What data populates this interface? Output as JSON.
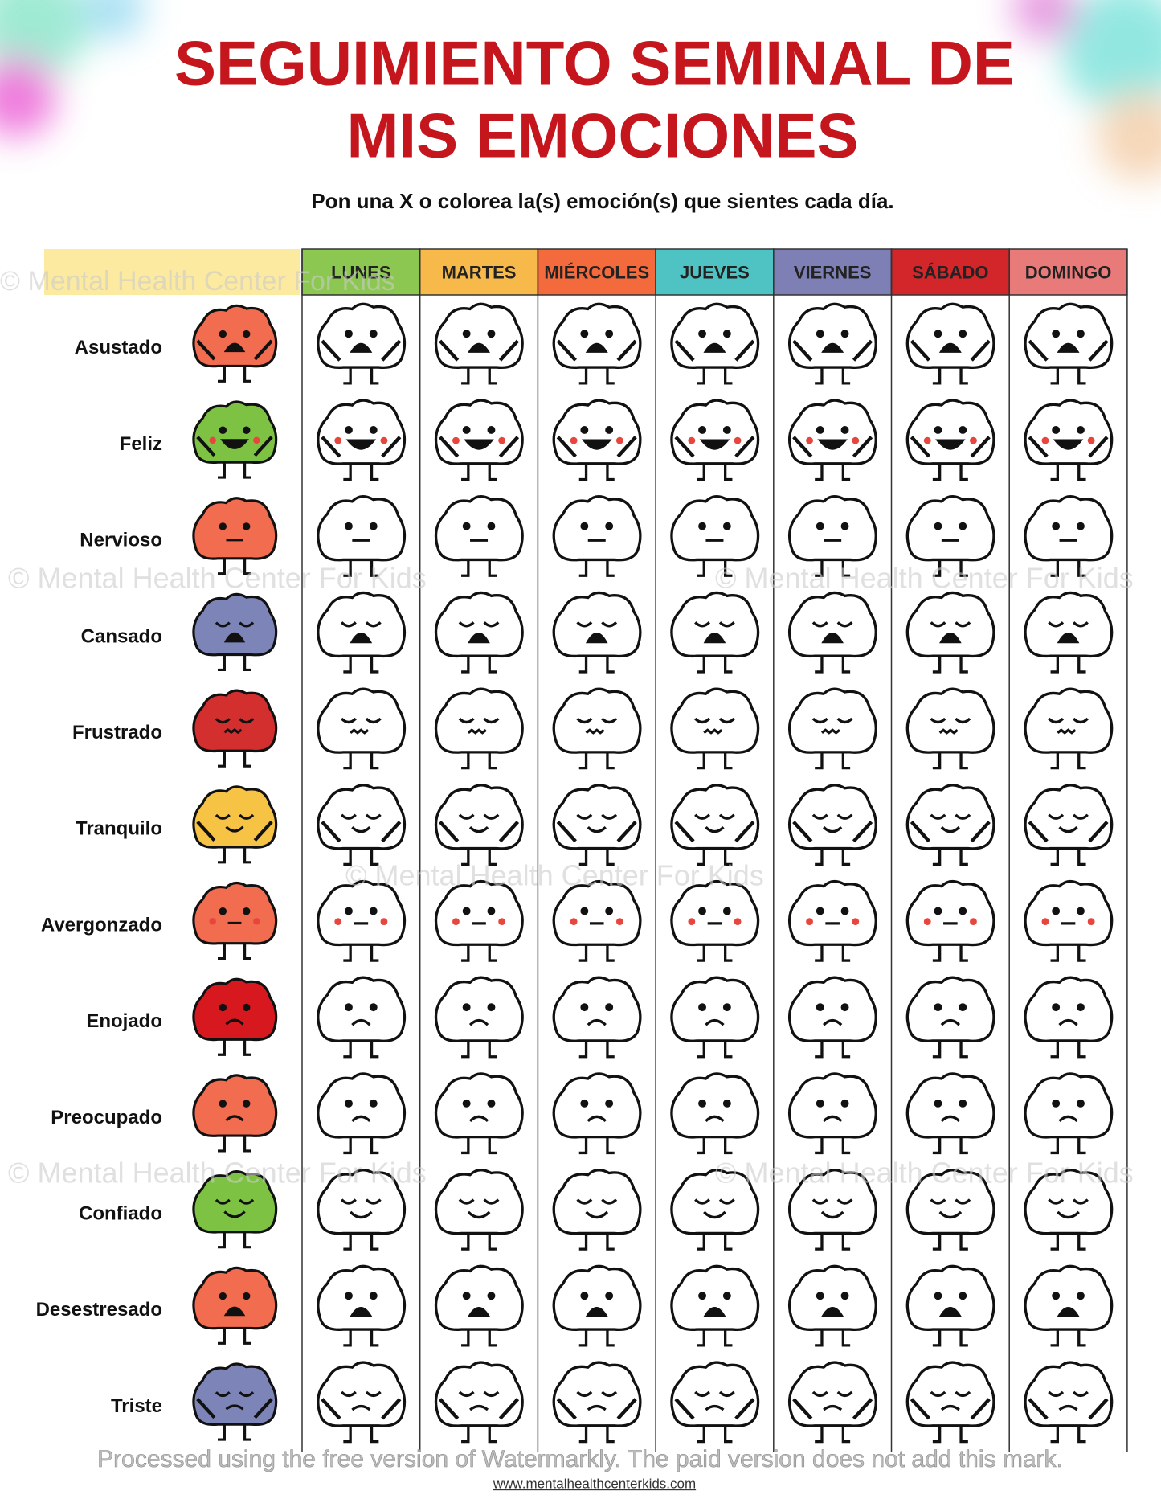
{
  "header": {
    "title_line1": "SEGUIMIENTO SEMINAL DE",
    "title_line2": "MIS EMOCIONES",
    "subtitle": "Pon una X o colorea la(s) emoción(s) que sientes cada día."
  },
  "days": [
    {
      "name": "LUNES",
      "color": "#8cc751"
    },
    {
      "name": "MARTES",
      "color": "#f7b94a"
    },
    {
      "name": "MIÉRCOLES",
      "color": "#f36b3d"
    },
    {
      "name": "JUEVES",
      "color": "#4fc3c4"
    },
    {
      "name": "VIERNES",
      "color": "#7d7fb5"
    },
    {
      "name": "SÁBADO",
      "color": "#d3262a"
    },
    {
      "name": "DOMINGO",
      "color": "#e97a7a"
    }
  ],
  "emotions": [
    {
      "name": "Asustado",
      "color": "#f26c4f"
    },
    {
      "name": "Feliz",
      "color": "#7dc242"
    },
    {
      "name": "Nervioso",
      "color": "#f26c4f"
    },
    {
      "name": "Cansado",
      "color": "#7d85b8"
    },
    {
      "name": "Frustrado",
      "color": "#d32f2f"
    },
    {
      "name": "Tranquilo",
      "color": "#f6c344"
    },
    {
      "name": "Avergonzado",
      "color": "#f26c4f"
    },
    {
      "name": "Enojado",
      "color": "#d7191f"
    },
    {
      "name": "Preocupado",
      "color": "#f26c4f"
    },
    {
      "name": "Confiado",
      "color": "#7dc242"
    },
    {
      "name": "Desestresado",
      "color": "#f26c4f"
    },
    {
      "name": "Triste",
      "color": "#7d85b8"
    }
  ],
  "watermark": "© Mental Health Center For Kids",
  "processed_note": "Processed using the free version of Watermarkly. The paid version does not add this mark.",
  "footer_url": "www.mentalhealthcenterkids.com"
}
